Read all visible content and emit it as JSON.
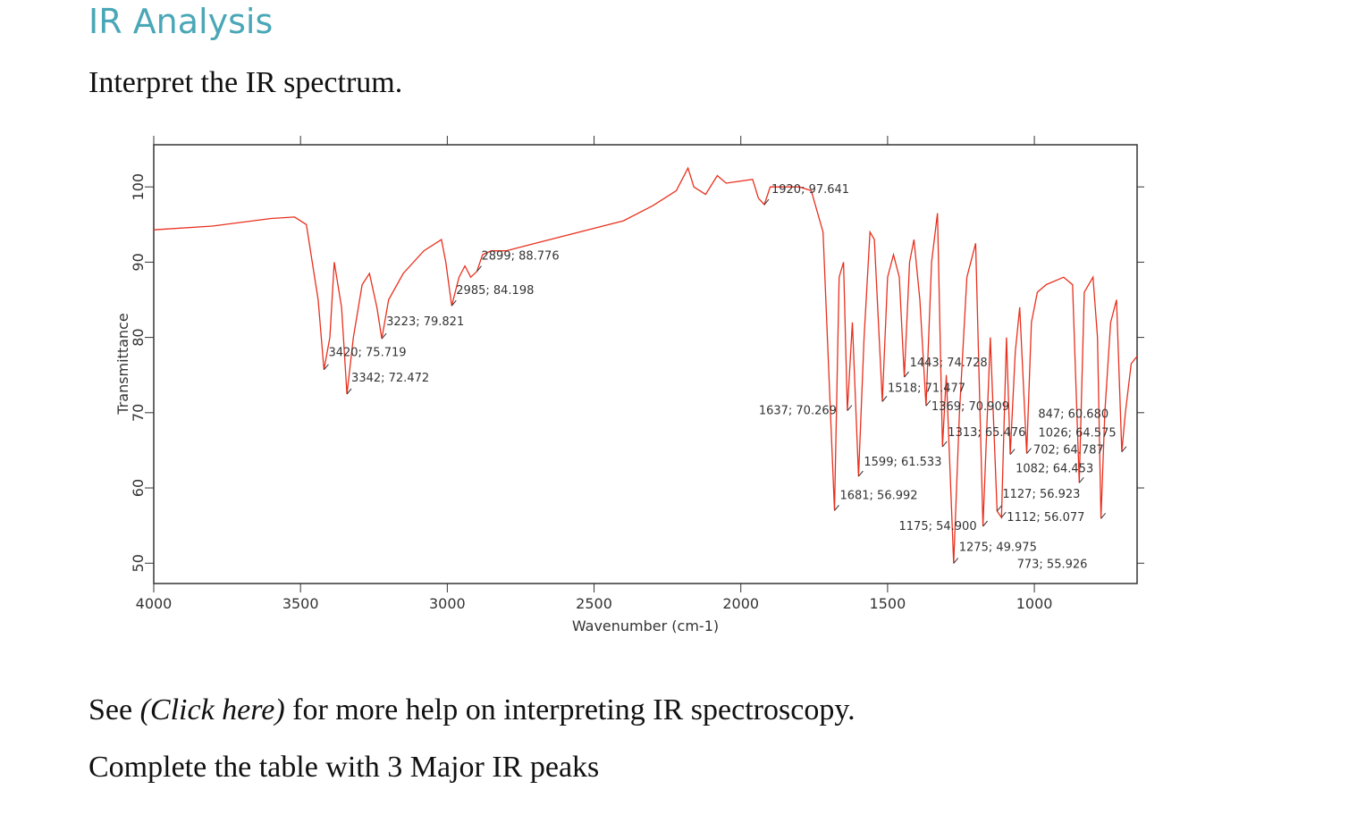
{
  "header": {
    "title": "IR Analysis"
  },
  "prompt": "Interpret the IR spectrum.",
  "chart_data": {
    "type": "line",
    "color": "#e8301e",
    "y_label": "Transmittance",
    "x_label": "Wavenumber (cm-1)",
    "xlim": [
      4000,
      650
    ],
    "ylim": [
      47.3,
      105.6
    ],
    "xticks": [
      4000,
      3500,
      3000,
      2500,
      2000,
      1500,
      1000
    ],
    "yticks": [
      50,
      60,
      70,
      80,
      90,
      100
    ],
    "x": [
      4000,
      3800,
      3600,
      3520,
      3480,
      3440,
      3420,
      3400,
      3385,
      3360,
      3342,
      3320,
      3290,
      3265,
      3240,
      3223,
      3200,
      3150,
      3080,
      3020,
      3005,
      2985,
      2960,
      2940,
      2920,
      2899,
      2880,
      2850,
      2800,
      2700,
      2600,
      2500,
      2400,
      2300,
      2220,
      2180,
      2160,
      2120,
      2080,
      2050,
      1960,
      1940,
      1920,
      1900,
      1800,
      1760,
      1720,
      1681,
      1665,
      1650,
      1637,
      1620,
      1599,
      1580,
      1560,
      1545,
      1518,
      1500,
      1480,
      1460,
      1443,
      1425,
      1410,
      1390,
      1369,
      1350,
      1330,
      1313,
      1300,
      1275,
      1255,
      1230,
      1200,
      1175,
      1150,
      1127,
      1112,
      1095,
      1082,
      1065,
      1050,
      1026,
      1010,
      990,
      960,
      900,
      870,
      847,
      830,
      800,
      785,
      773,
      760,
      740,
      720,
      702,
      690,
      670,
      650
    ],
    "values": [
      94.3,
      94.8,
      95.8,
      96.0,
      95.0,
      85,
      75.719,
      80,
      90,
      84,
      72.472,
      80,
      87,
      88.5,
      84,
      79.821,
      85,
      88.5,
      91.5,
      93,
      90,
      84.198,
      88,
      89.5,
      88,
      88.776,
      91,
      91.5,
      91.5,
      92.5,
      93.5,
      94.5,
      95.5,
      97.5,
      99.5,
      102.5,
      100,
      99,
      101.5,
      100.5,
      101,
      98.5,
      97.641,
      100,
      100,
      99.5,
      94,
      56.992,
      88,
      90,
      70.269,
      82,
      61.533,
      80,
      94,
      93,
      71.477,
      88,
      91,
      88,
      74.728,
      90,
      93,
      85,
      70.909,
      90,
      96.5,
      65.476,
      75,
      49.975,
      70,
      88,
      92.5,
      54.9,
      80,
      56.923,
      56.077,
      80,
      64.453,
      78,
      84,
      64.575,
      82,
      86,
      87,
      88,
      87,
      60.68,
      86,
      88,
      80,
      55.926,
      70,
      82,
      85,
      64.787,
      70,
      76.5,
      77.5
    ],
    "annotations": [
      {
        "x": 1920,
        "y": 97.641,
        "label": "1920; 97.641"
      },
      {
        "x": 2899,
        "y": 88.776,
        "label": "2899; 88.776"
      },
      {
        "x": 2985,
        "y": 84.198,
        "label": "2985; 84.198"
      },
      {
        "x": 3223,
        "y": 79.821,
        "label": "3223; 79.821"
      },
      {
        "x": 3420,
        "y": 75.719,
        "label": "3420; 75.719"
      },
      {
        "x": 3342,
        "y": 72.472,
        "label": "3342; 72.472"
      },
      {
        "x": 1637,
        "y": 70.269,
        "label": "1637; 70.269"
      },
      {
        "x": 1681,
        "y": 56.992,
        "label": "1681; 56.992"
      },
      {
        "x": 1599,
        "y": 61.533,
        "label": "1599; 61.533"
      },
      {
        "x": 1518,
        "y": 71.477,
        "label": "1518; 71.477"
      },
      {
        "x": 1443,
        "y": 74.728,
        "label": "1443; 74.728"
      },
      {
        "x": 1369,
        "y": 70.909,
        "label": "1369; 70.909"
      },
      {
        "x": 1313,
        "y": 65.476,
        "label": "1313; 65.476"
      },
      {
        "x": 1275,
        "y": 49.975,
        "label": "1275; 49.975"
      },
      {
        "x": 1175,
        "y": 54.9,
        "label": "1175; 54.900"
      },
      {
        "x": 1127,
        "y": 56.923,
        "label": "1127; 56.923"
      },
      {
        "x": 1112,
        "y": 56.077,
        "label": "1112; 56.077"
      },
      {
        "x": 1082,
        "y": 64.453,
        "label": "1082; 64.453"
      },
      {
        "x": 1026,
        "y": 64.575,
        "label": "1026; 64.575"
      },
      {
        "x": 847,
        "y": 60.68,
        "label": "847; 60.680"
      },
      {
        "x": 702,
        "y": 64.787,
        "label": "702; 64.787"
      },
      {
        "x": 773,
        "y": 55.926,
        "label": "773; 55.926"
      }
    ]
  },
  "help": {
    "before": "See ",
    "link": "(Click here)",
    "after": " for more help on interpreting IR spectroscopy."
  },
  "instruction": "Complete the table with 3 Major IR peaks"
}
